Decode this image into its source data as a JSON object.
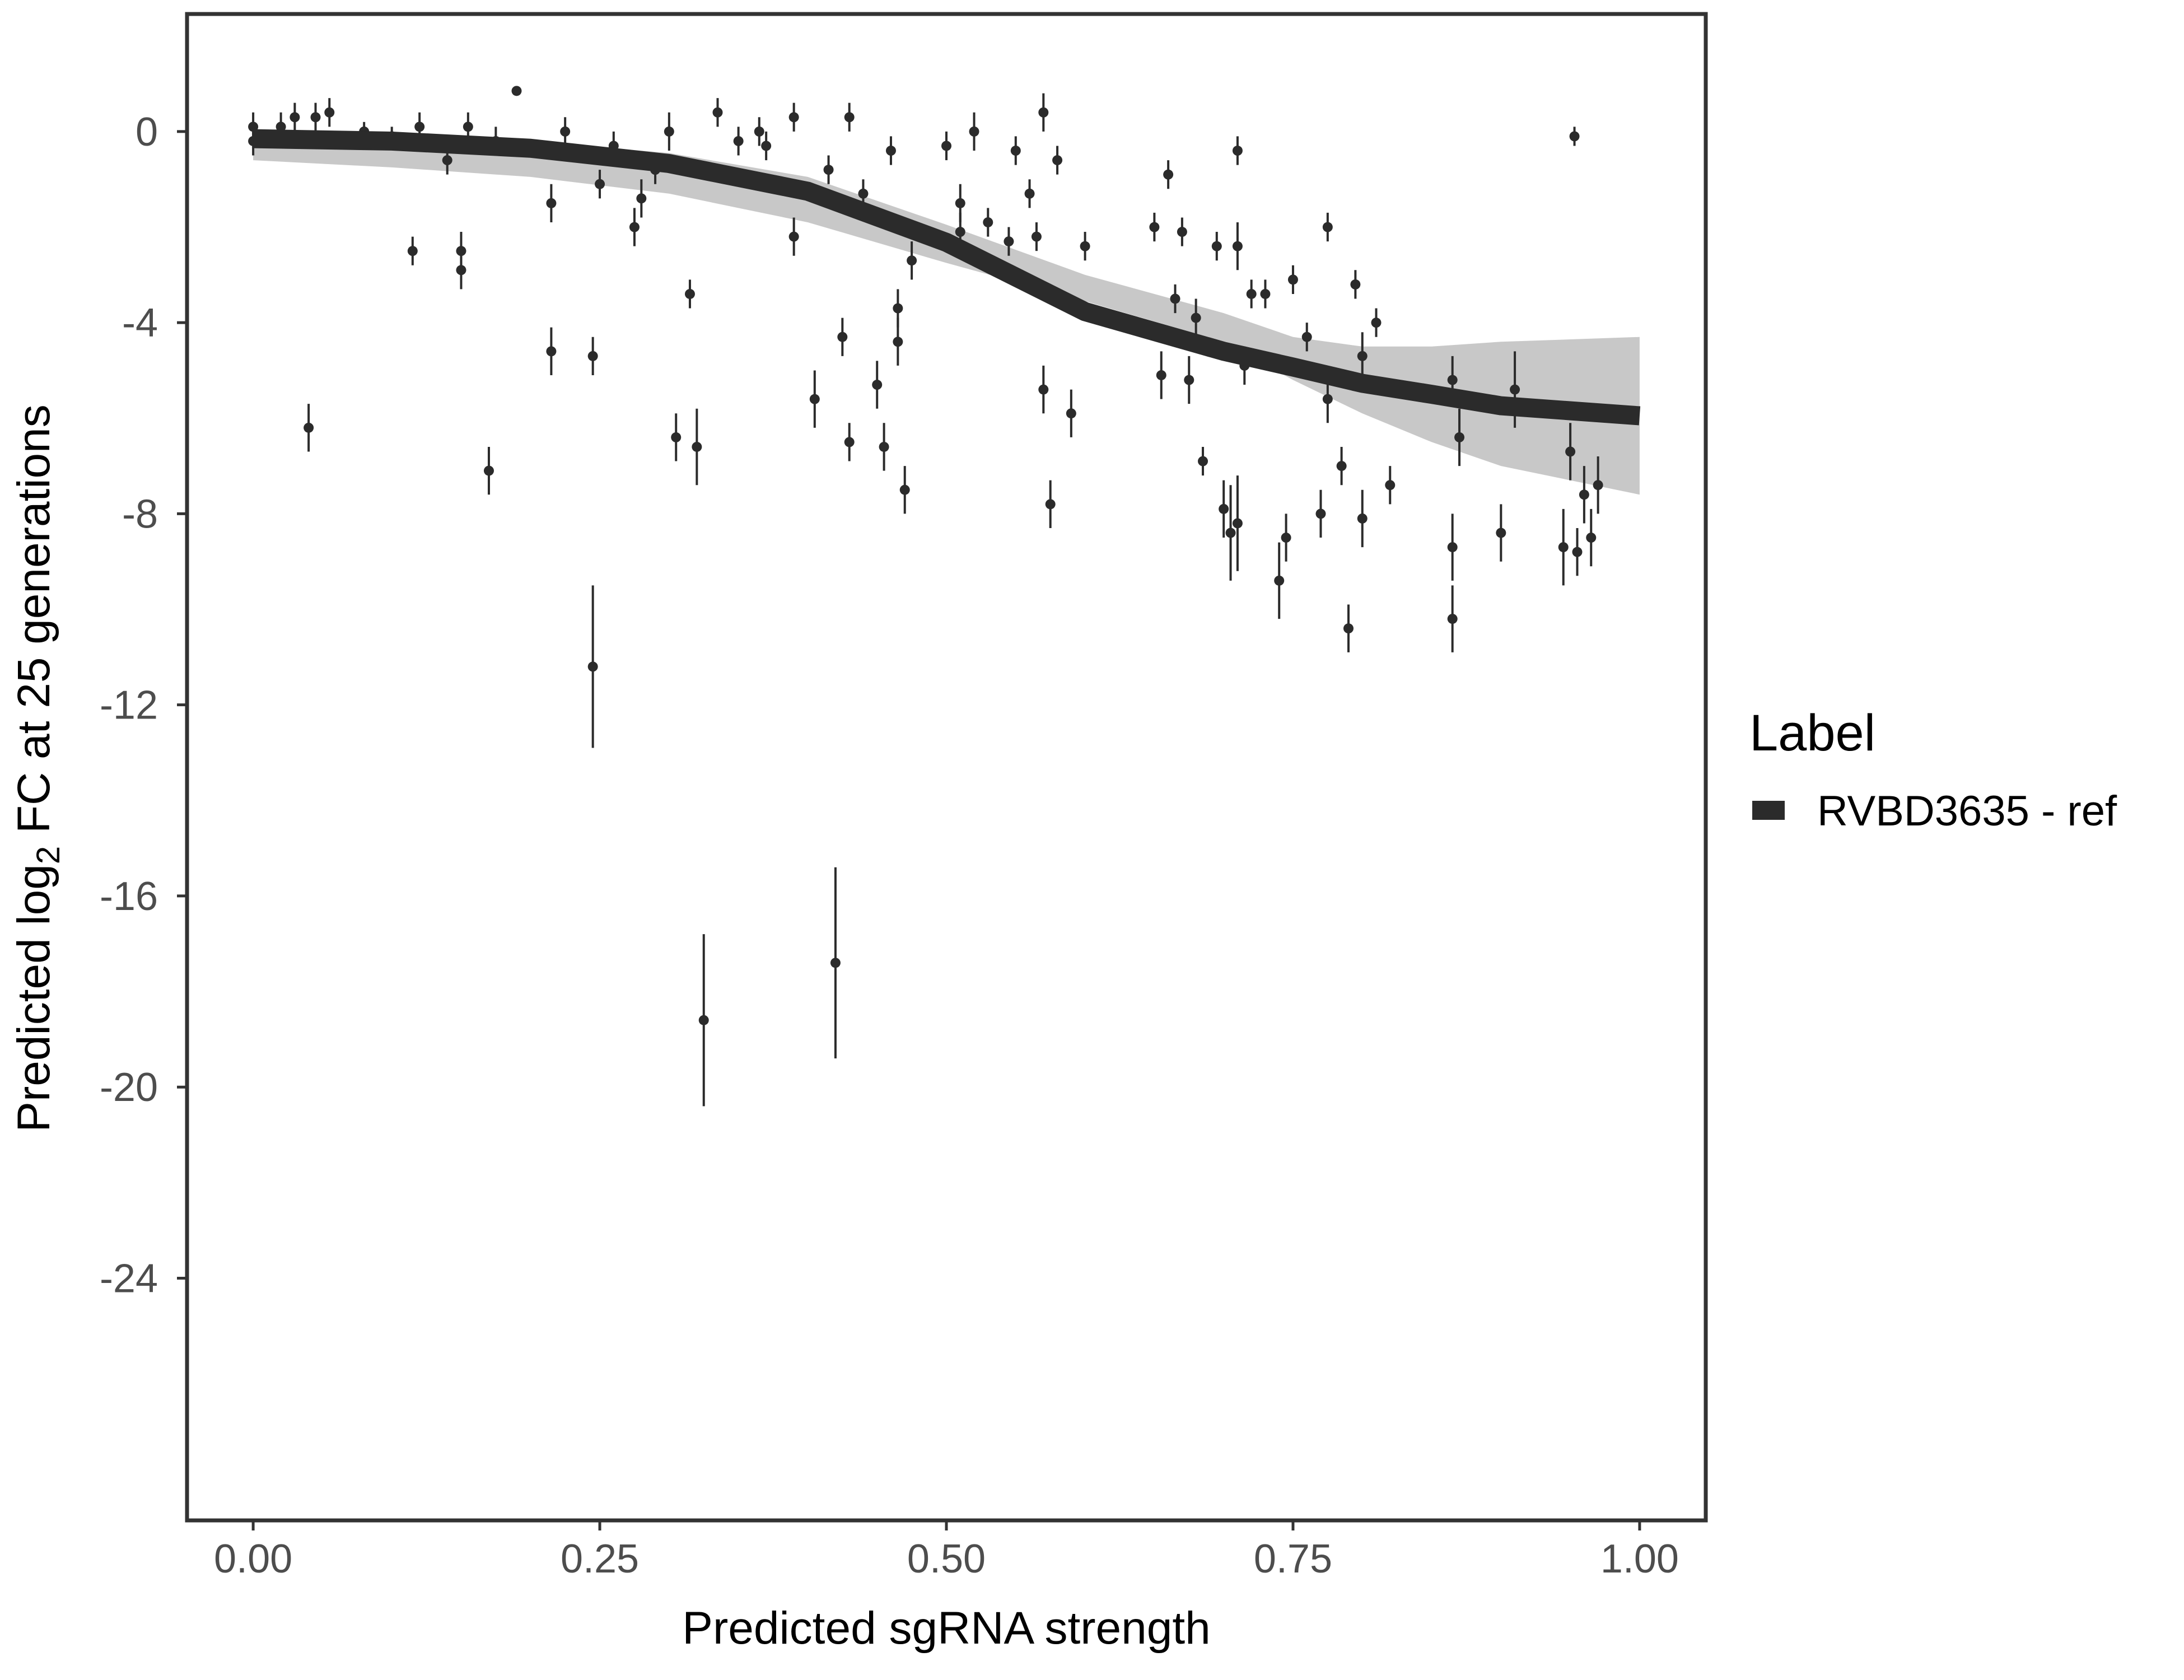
{
  "chart_data": {
    "type": "scatter",
    "x_label": "Predicted sgRNA strength",
    "y_label": [
      "Predicted  log",
      "2",
      " FC at 25 generations"
    ],
    "legend_title": "Label",
    "grid": false,
    "xlim": [
      -0.0477,
      1.0477
    ],
    "ylim": [
      -29.07,
      2.46
    ],
    "xticks": [
      {
        "value": 0,
        "label": "0.00"
      },
      {
        "value": 0.25,
        "label": "0.25"
      },
      {
        "value": 0.5,
        "label": "0.50"
      },
      {
        "value": 0.75,
        "label": "0.75"
      },
      {
        "value": 1,
        "label": "1.00"
      }
    ],
    "yticks": [
      0,
      -4,
      -8,
      -12,
      -16,
      -20,
      -24
    ],
    "points": {
      "color": "#2b2b2b",
      "x": [
        0.0,
        0.0,
        0.02,
        0.03,
        0.04,
        0.045,
        0.055,
        0.08,
        0.1,
        0.115,
        0.12,
        0.14,
        0.15,
        0.15,
        0.155,
        0.17,
        0.175,
        0.19,
        0.215,
        0.215,
        0.225,
        0.245,
        0.245,
        0.25,
        0.26,
        0.275,
        0.28,
        0.29,
        0.3,
        0.305,
        0.315,
        0.32,
        0.325,
        0.335,
        0.35,
        0.365,
        0.37,
        0.39,
        0.39,
        0.405,
        0.415,
        0.42,
        0.425,
        0.43,
        0.43,
        0.44,
        0.45,
        0.455,
        0.46,
        0.465,
        0.465,
        0.47,
        0.475,
        0.5,
        0.51,
        0.51,
        0.52,
        0.53,
        0.545,
        0.55,
        0.56,
        0.565,
        0.57,
        0.57,
        0.575,
        0.58,
        0.59,
        0.6,
        0.65,
        0.655,
        0.66,
        0.665,
        0.67,
        0.675,
        0.68,
        0.685,
        0.695,
        0.7,
        0.705,
        0.71,
        0.71,
        0.71,
        0.715,
        0.72,
        0.73,
        0.74,
        0.745,
        0.75,
        0.76,
        0.77,
        0.775,
        0.775,
        0.785,
        0.79,
        0.795,
        0.8,
        0.8,
        0.81,
        0.82,
        0.865,
        0.865,
        0.865,
        0.87,
        0.9,
        0.91,
        0.945,
        0.953,
        0.95,
        0.955,
        0.96,
        0.965,
        0.97
      ],
      "values": [
        0.1,
        -0.2,
        0.1,
        0.3,
        -6.2,
        0.3,
        0.4,
        0.0,
        -0.1,
        -2.5,
        0.1,
        -0.6,
        -2.5,
        -2.9,
        0.1,
        -7.1,
        -0.2,
        0.85,
        -1.5,
        -4.6,
        0.0,
        -4.7,
        -11.2,
        -1.1,
        -0.3,
        -2.0,
        -1.4,
        -0.8,
        0.0,
        -6.4,
        -3.4,
        -6.6,
        -18.6,
        0.4,
        -0.2,
        0.0,
        -0.3,
        -2.2,
        0.3,
        -5.6,
        -0.8,
        -17.4,
        -4.3,
        -6.5,
        0.3,
        -1.3,
        -5.3,
        -6.6,
        -0.4,
        -3.7,
        -4.4,
        -7.5,
        -2.7,
        -0.3,
        -1.5,
        -2.1,
        0.0,
        -1.9,
        -2.3,
        -0.4,
        -1.3,
        -2.2,
        0.4,
        -5.4,
        -7.8,
        -0.6,
        -5.9,
        -2.4,
        -2.0,
        -5.1,
        -0.9,
        -3.5,
        -2.1,
        -5.2,
        -3.9,
        -6.9,
        -2.4,
        -7.9,
        -8.4,
        -8.2,
        -0.4,
        -2.4,
        -4.9,
        -3.4,
        -3.4,
        -9.4,
        -8.5,
        -3.1,
        -4.3,
        -8.0,
        -2.0,
        -5.6,
        -7.0,
        -10.4,
        -3.2,
        -4.7,
        -8.1,
        -4.0,
        -7.4,
        -5.2,
        -8.7,
        -10.2,
        -6.4,
        -8.4,
        -5.4,
        -8.7,
        -0.1,
        -6.7,
        -8.8,
        -7.6,
        -8.5,
        -7.4
      ],
      "errors": [
        0.3,
        0.3,
        0.3,
        0.3,
        0.5,
        0.3,
        0.3,
        0.2,
        0.2,
        0.3,
        0.3,
        0.3,
        0.4,
        0.4,
        0.3,
        0.5,
        0.3,
        0.1,
        0.4,
        0.5,
        0.3,
        0.4,
        1.7,
        0.3,
        0.3,
        0.4,
        0.4,
        0.3,
        0.4,
        0.5,
        0.3,
        0.8,
        1.8,
        0.3,
        0.3,
        0.3,
        0.3,
        0.4,
        0.3,
        0.6,
        0.3,
        2.0,
        0.4,
        0.4,
        0.3,
        0.3,
        0.5,
        0.5,
        0.3,
        0.4,
        0.5,
        0.5,
        0.4,
        0.3,
        0.4,
        0.4,
        0.4,
        0.3,
        0.3,
        0.3,
        0.3,
        0.3,
        0.4,
        0.5,
        0.5,
        0.3,
        0.5,
        0.3,
        0.3,
        0.5,
        0.3,
        0.3,
        0.3,
        0.5,
        0.4,
        0.3,
        0.3,
        0.6,
        1.0,
        1.0,
        0.3,
        0.5,
        0.4,
        0.3,
        0.3,
        0.8,
        0.5,
        0.3,
        0.3,
        0.5,
        0.3,
        0.5,
        0.4,
        0.5,
        0.3,
        0.5,
        0.6,
        0.3,
        0.4,
        0.5,
        0.7,
        0.7,
        0.6,
        0.6,
        0.8,
        0.8,
        0.2,
        0.6,
        0.5,
        0.6,
        0.6,
        0.6
      ]
    },
    "band": {
      "color": "#b5b5b5",
      "lower": [
        -0.6,
        -0.75,
        -0.95,
        -1.3,
        -1.9,
        -2.75,
        -3.55,
        -4.4,
        -5.2,
        -5.9,
        -6.5,
        -7.0,
        -7.6
      ],
      "upper": [
        0.0,
        -0.05,
        -0.2,
        -0.45,
        -0.95,
        -1.95,
        -3.0,
        -3.8,
        -4.3,
        -4.5,
        -4.5,
        -4.4,
        -4.3
      ]
    },
    "series": [
      {
        "name": "RVBD3635 - ref",
        "color": "#2b2b2b",
        "x": [
          0,
          0.1,
          0.2,
          0.3,
          0.4,
          0.5,
          0.6,
          0.7,
          0.75,
          0.8,
          0.85,
          0.9,
          1.0
        ],
        "values": [
          -0.15,
          -0.2,
          -0.35,
          -0.67,
          -1.25,
          -2.32,
          -3.77,
          -4.6,
          -4.93,
          -5.27,
          -5.5,
          -5.74,
          -5.95
        ]
      }
    ]
  }
}
